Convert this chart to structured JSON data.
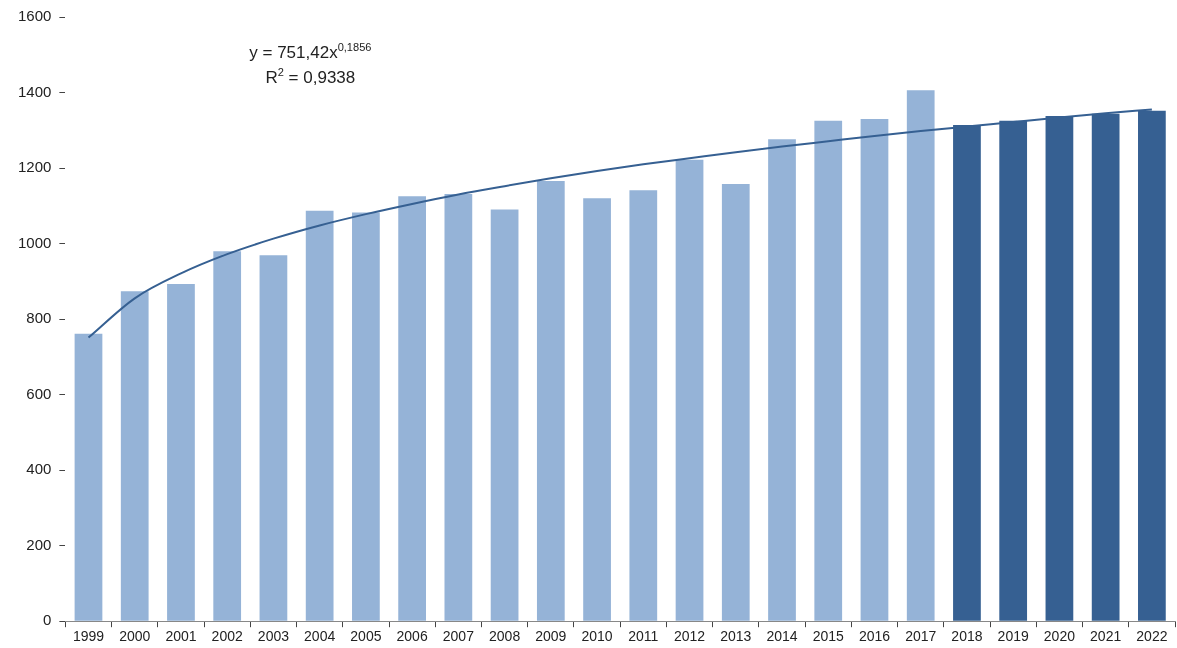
{
  "chart_data": {
    "type": "bar",
    "categories": [
      "1999",
      "2000",
      "2001",
      "2002",
      "2003",
      "2004",
      "2005",
      "2006",
      "2007",
      "2008",
      "2009",
      "2010",
      "2011",
      "2012",
      "2013",
      "2014",
      "2015",
      "2016",
      "2017",
      "2018",
      "2019",
      "2020",
      "2021",
      "2022"
    ],
    "series": [
      {
        "colors": [
          "#95b3d7",
          "#95b3d7",
          "#95b3d7",
          "#95b3d7",
          "#95b3d7",
          "#95b3d7",
          "#95b3d7",
          "#95b3d7",
          "#95b3d7",
          "#95b3d7",
          "#95b3d7",
          "#95b3d7",
          "#95b3d7",
          "#95b3d7",
          "#95b3d7",
          "#95b3d7",
          "#95b3d7",
          "#95b3d7",
          "#95b3d7",
          "#366092",
          "#366092",
          "#366092",
          "#366092",
          "#366092"
        ],
        "values": [
          761,
          874,
          893,
          980,
          969,
          1087,
          1082,
          1125,
          1131,
          1090,
          1166,
          1120,
          1141,
          1222,
          1158,
          1276,
          1325,
          1330,
          1406,
          1314,
          1325,
          1338,
          1344,
          1352
        ]
      },
      {
        "type": "line",
        "color": "#366092",
        "values": [
          751,
          855,
          921,
          972,
          1013,
          1048,
          1078,
          1105,
          1130,
          1152,
          1173,
          1192,
          1210,
          1226,
          1242,
          1257,
          1271,
          1285,
          1298,
          1310,
          1322,
          1334,
          1345,
          1355
        ]
      }
    ],
    "ylim": [
      0,
      1600
    ],
    "yticks": [
      0,
      200,
      400,
      600,
      800,
      1000,
      1200,
      1400,
      1600
    ],
    "grid": false,
    "legend": false,
    "marker": "none",
    "annotations": [
      "y = 751,42x$^{0,1856}$",
      "R$^{2}$ = 0,9338"
    ]
  }
}
